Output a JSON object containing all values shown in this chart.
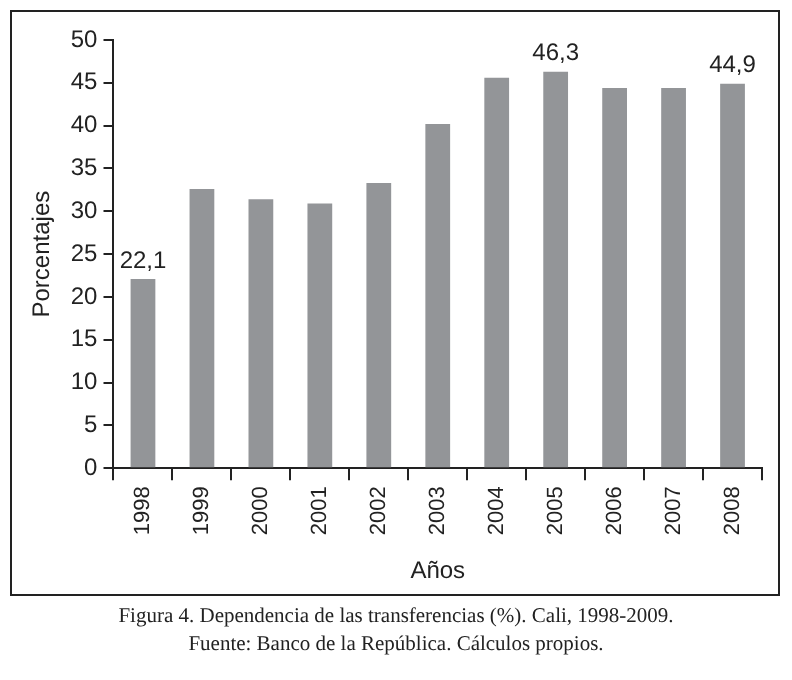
{
  "chart_data": {
    "type": "bar",
    "title": "Figura 4. Dependencia de las transferencias (%). Cali, 1998-2009.",
    "xlabel": "Años",
    "ylabel": "Porcentajes",
    "categories": [
      "1998",
      "1999",
      "2000",
      "2001",
      "2002",
      "2003",
      "2004",
      "2005",
      "2006",
      "2007",
      "2008"
    ],
    "values": [
      22.1,
      32.6,
      31.4,
      30.9,
      33.3,
      40.2,
      45.6,
      46.3,
      44.4,
      44.4,
      44.9
    ],
    "value_labels": [
      "22,1",
      null,
      null,
      null,
      null,
      null,
      null,
      "46,3",
      null,
      null,
      "44,9"
    ],
    "color": "#939598",
    "ylim": [
      0,
      50
    ],
    "yticks": [
      0,
      5,
      10,
      15,
      20,
      25,
      30,
      35,
      40,
      45,
      50
    ],
    "grid": false,
    "legend": false,
    "annotations": [
      "Fuente: Banco de la República. Cálculos propios."
    ]
  }
}
